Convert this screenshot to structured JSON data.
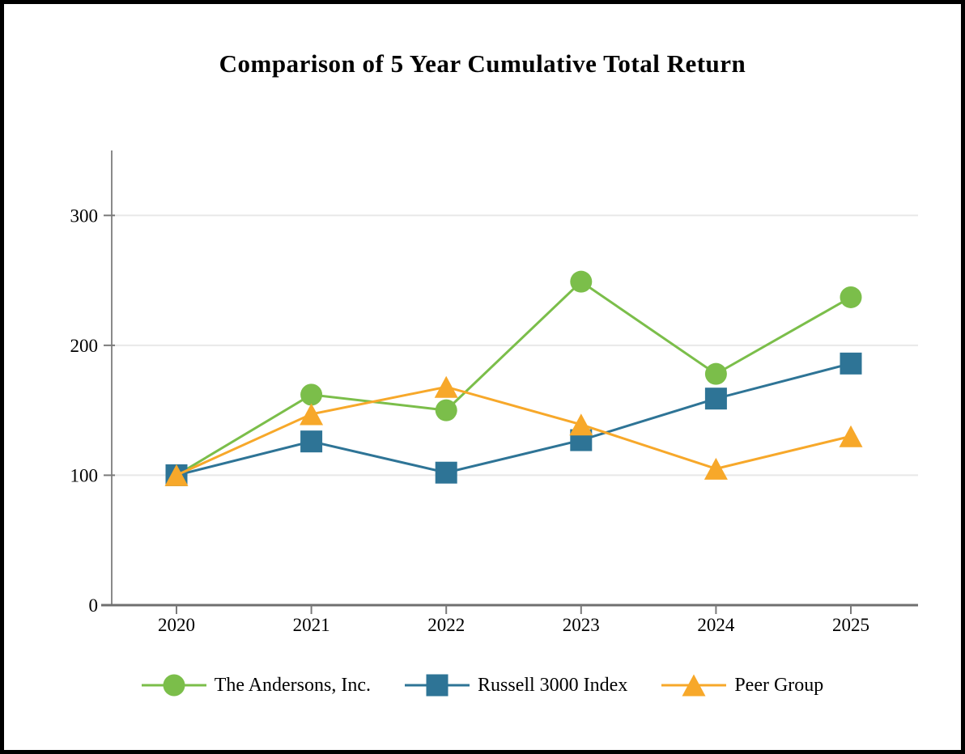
{
  "page": {
    "background": "#ffffff",
    "border_color": "#000000"
  },
  "chart_data": {
    "type": "line",
    "title": "Comparison of 5 Year Cumulative Total Return",
    "categories": [
      "2020",
      "2021",
      "2022",
      "2023",
      "2024",
      "2025"
    ],
    "series": [
      {
        "name": "The Andersons, Inc.",
        "marker": "circle",
        "color": "#7BBE4A",
        "values": [
          100,
          162,
          150,
          249,
          178,
          237
        ]
      },
      {
        "name": "Russell 3000 Index",
        "marker": "square",
        "color": "#2E7496",
        "values": [
          100,
          126,
          102,
          127,
          159,
          186
        ]
      },
      {
        "name": "Peer Group",
        "marker": "triangle",
        "color": "#F7A82A",
        "values": [
          100,
          147,
          168,
          139,
          105,
          130
        ]
      }
    ],
    "ylim": [
      0,
      350
    ],
    "yticks": [
      0,
      100,
      200,
      300
    ],
    "grid": true,
    "legend_position": "bottom",
    "gridline_color": "#e8e8e8",
    "y_axis_color": "#8a8a8a",
    "x_axis_color": "#6f6f6f",
    "tick_color": "#7a7a7a"
  }
}
